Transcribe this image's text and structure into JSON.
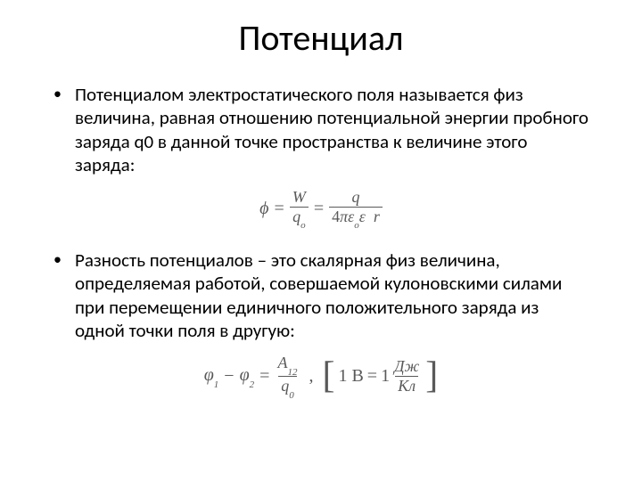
{
  "title": "Потенциал",
  "bullet1": "Потенциалом электростатического поля называется физ величина, равная отношению потенциальной энергии пробного заряда q0 в данной точке пространства к величине этого заряда:",
  "bullet2": "Разность потенциалов – это скалярная физ величина, определяемая работой, совершаемой кулоновскими силами при перемещении единичного положительного заряда из одной точки поля в другую:",
  "formula1": {
    "lhs": "ϕ",
    "frac1_num": "W",
    "frac1_den_base": "q",
    "frac1_den_sub": "o",
    "frac2_num": "q",
    "frac2_den": "4πεoε  r"
  },
  "formula2": {
    "phi": "φ",
    "sub1": "1",
    "sub2": "2",
    "minus": "−",
    "frac_num_A": "A",
    "frac_num_sub": "12",
    "frac_den_q": "q",
    "frac_den_sub": "0",
    "unit_lhs": "1 В",
    "unit_num": "Дж",
    "unit_den": "Кл"
  },
  "style": {
    "bg_color": "#ffffff",
    "text_color": "#000000",
    "formula_color": "#595959",
    "title_fontsize": 40,
    "body_fontsize": 21,
    "formula_fontsize": 20
  }
}
